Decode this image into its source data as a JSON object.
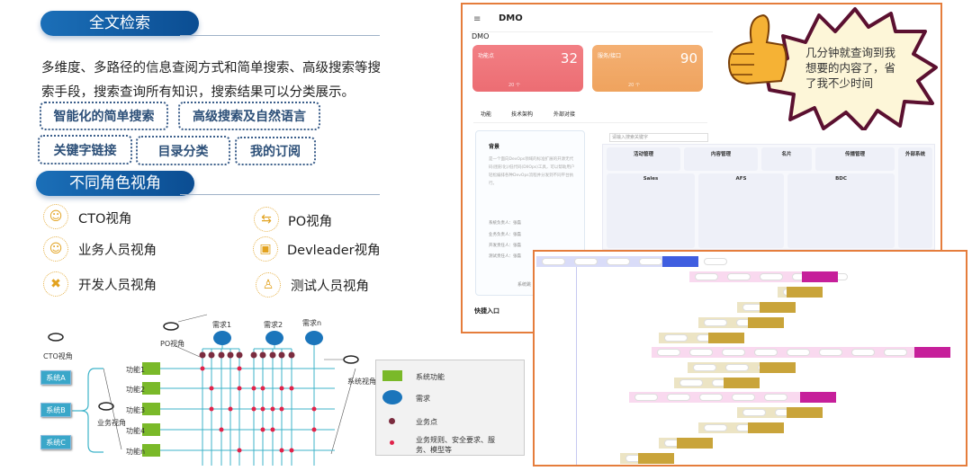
{
  "left": {
    "search_title": "全文检索",
    "search_desc": "多维度、多路径的信息查阅方式和简单搜索、高级搜索等搜索手段，搜索查询所有知识，搜索结果可以分类展示。",
    "features": [
      "智能化的简单搜索",
      "高级搜索及自然语言",
      "关键字链接",
      "目录分类",
      "我的订阅"
    ],
    "roles_title": "不同角色视角",
    "roles": [
      {
        "label": "CTO视角",
        "icon": "person-icon"
      },
      {
        "label": "PO视角",
        "icon": "transfer-icon"
      },
      {
        "label": "业务人员视角",
        "icon": "person-icon"
      },
      {
        "label": "Devleader视角",
        "icon": "hand-box-icon"
      },
      {
        "label": "开发人员视角",
        "icon": "tools-icon"
      },
      {
        "label": "测试人员视角",
        "icon": "worker-icon"
      }
    ]
  },
  "diagram": {
    "cto_view": "CTO视角",
    "po_view": "PO视角",
    "business_view": "业务视角",
    "system_view": "系统视角",
    "systems": [
      "系统A",
      "系统B",
      "系统C"
    ],
    "functions": [
      "功能1",
      "功能2",
      "功能3",
      "功能4",
      "功能n"
    ],
    "needs": [
      "需求1",
      "需求2",
      "需求n"
    ],
    "legend": {
      "function": "系统功能",
      "need": "需求",
      "business_point": "业务点",
      "rule": "业务规则、安全要求、服务、模型等"
    },
    "colors": {
      "function": "#7ab929",
      "need": "#1b75bb",
      "business_point": "#7b2c3f",
      "rule": "#e0234a",
      "line": "#3db3c9"
    }
  },
  "app": {
    "title": "DMO",
    "subtitle": "DMO",
    "cards": [
      {
        "label": "功能点",
        "value": "32",
        "note": "20 个",
        "color": "#ee6e74"
      },
      {
        "label": "服务/接口",
        "value": "90",
        "note": "20 个",
        "color": "#f2a866"
      }
    ],
    "tabs": [
      "功能",
      "技术架构",
      "外部对接"
    ],
    "background_title": "背景",
    "background_text": "是一个面向DevOps领域的标准扩展的开源无代码(图形化)/低代码(DIIOps)工具，可以帮助用户轻松编排各种DevOps流程并分发到不同平台执行。",
    "owners": [
      "系统负责人：张磊",
      "业务负责人：张磊",
      "开发责任人：张磊",
      "测试责任人：张磊"
    ],
    "system_link": "系统跳",
    "quick_entry": "快捷入口",
    "search_placeholder": "请输入搜索关键字",
    "groups": [
      "活动管理",
      "内容管理",
      "名片",
      "传播管理",
      "外部系统",
      "Sales",
      "AFS",
      "BDC"
    ]
  },
  "bubble": {
    "text": "几分钟就查询到我想要的内容了，省了我不少时间"
  }
}
